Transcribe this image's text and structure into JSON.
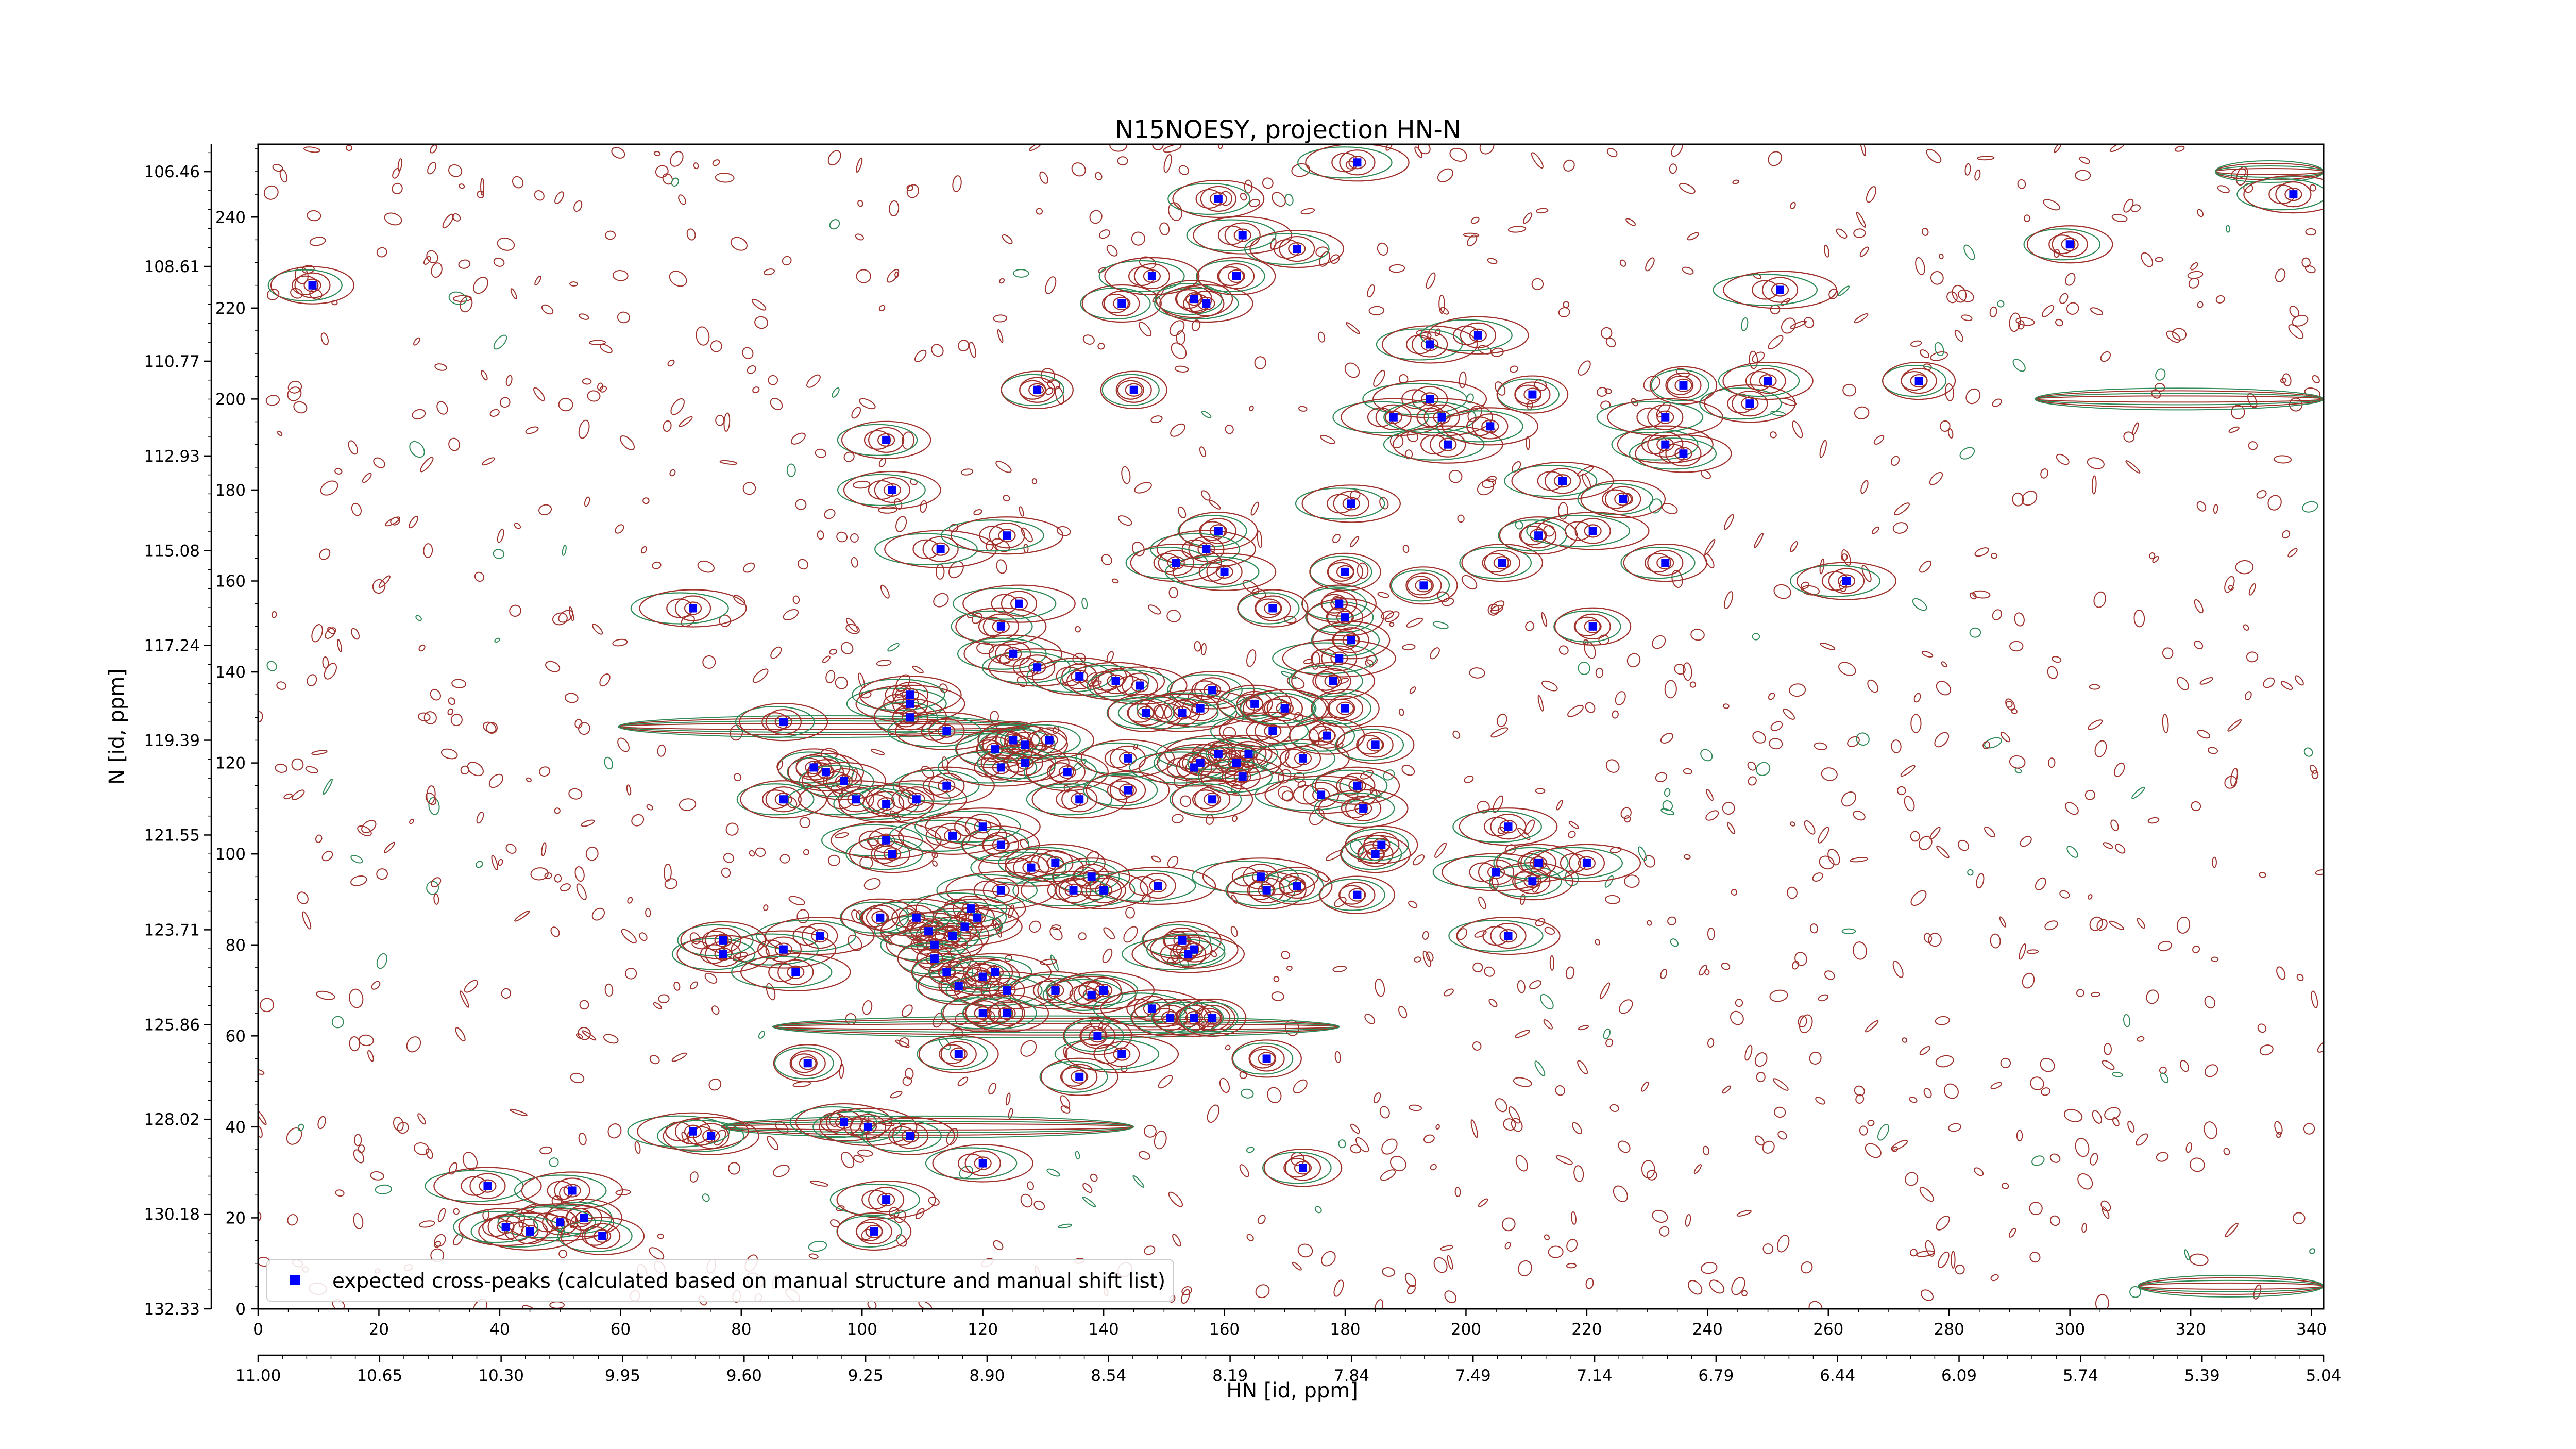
{
  "chart_data": {
    "type": "scatter",
    "title": "N15NOESY, projection HN-N",
    "xlabel": "HN [id, ppm]",
    "ylabel": "N [id, ppm]",
    "x_index_range": [
      0,
      342
    ],
    "y_index_range": [
      0,
      256
    ],
    "x_index_ticks": [
      "0",
      "20",
      "40",
      "60",
      "80",
      "100",
      "120",
      "140",
      "160",
      "180",
      "200",
      "220",
      "240",
      "260",
      "280",
      "300",
      "320",
      "340"
    ],
    "y_index_ticks": [
      "0",
      "20",
      "40",
      "60",
      "80",
      "100",
      "120",
      "140",
      "160",
      "180",
      "200",
      "220",
      "240"
    ],
    "hn_ppm_ticks": [
      "11.00",
      "10.65",
      "10.30",
      "9.95",
      "9.60",
      "9.25",
      "8.90",
      "8.54",
      "8.19",
      "7.84",
      "7.49",
      "7.14",
      "6.79",
      "6.44",
      "6.09",
      "5.74",
      "5.39",
      "5.04"
    ],
    "n_ppm_ticks": [
      "132.33",
      "130.18",
      "128.02",
      "125.86",
      "123.71",
      "121.55",
      "119.39",
      "117.24",
      "115.08",
      "112.93",
      "110.77",
      "108.61",
      "106.46"
    ],
    "contour_colors": {
      "positive": "#a0302a",
      "negative": "#2e8b57"
    },
    "marker_color": "#0000ff",
    "legend": {
      "label": "expected cross-peaks (calculated based on manual structure and manual shift list)",
      "position": "lower left"
    },
    "series": [
      {
        "name": "expected cross-peaks (calculated based on manual structure and manual shift list)",
        "points": [
          [
            9,
            225
          ],
          [
            143,
            221
          ],
          [
            155,
            222
          ],
          [
            157,
            221
          ],
          [
            162,
            227
          ],
          [
            148,
            227
          ],
          [
            163,
            236
          ],
          [
            159,
            244
          ],
          [
            172,
            233
          ],
          [
            182,
            252
          ],
          [
            337,
            245
          ],
          [
            300,
            234
          ],
          [
            252,
            224
          ],
          [
            194,
            212
          ],
          [
            202,
            214
          ],
          [
            194,
            200
          ],
          [
            188,
            196
          ],
          [
            197,
            190
          ],
          [
            196,
            196
          ],
          [
            204,
            194
          ],
          [
            211,
            201
          ],
          [
            216,
            182
          ],
          [
            226,
            178
          ],
          [
            236,
            203
          ],
          [
            233,
            190
          ],
          [
            233,
            196
          ],
          [
            236,
            188
          ],
          [
            247,
            199
          ],
          [
            250,
            204
          ],
          [
            275,
            204
          ],
          [
            104,
            191
          ],
          [
            105,
            180
          ],
          [
            129,
            202
          ],
          [
            145,
            202
          ],
          [
            113,
            167
          ],
          [
            124,
            170
          ],
          [
            159,
            171
          ],
          [
            157,
            167
          ],
          [
            152,
            164
          ],
          [
            160,
            162
          ],
          [
            168,
            154
          ],
          [
            180,
            162
          ],
          [
            181,
            177
          ],
          [
            193,
            159
          ],
          [
            206,
            164
          ],
          [
            212,
            170
          ],
          [
            221,
            171
          ],
          [
            233,
            164
          ],
          [
            263,
            160
          ],
          [
            221,
            150
          ],
          [
            72,
            154
          ],
          [
            123,
            150
          ],
          [
            126,
            155
          ],
          [
            125,
            144
          ],
          [
            129,
            141
          ],
          [
            136,
            139
          ],
          [
            142,
            138
          ],
          [
            146,
            137
          ],
          [
            158,
            136
          ],
          [
            156,
            132
          ],
          [
            153,
            131
          ],
          [
            165,
            133
          ],
          [
            170,
            132
          ],
          [
            180,
            132
          ],
          [
            179,
            143
          ],
          [
            178,
            138
          ],
          [
            180,
            152
          ],
          [
            181,
            147
          ],
          [
            179,
            155
          ],
          [
            87,
            129
          ],
          [
            108,
            133
          ],
          [
            108,
            135
          ],
          [
            108,
            130
          ],
          [
            114,
            127
          ],
          [
            125,
            125
          ],
          [
            127,
            124
          ],
          [
            131,
            125
          ],
          [
            122,
            123
          ],
          [
            147,
            131
          ],
          [
            144,
            121
          ],
          [
            156,
            120
          ],
          [
            159,
            122
          ],
          [
            164,
            122
          ],
          [
            173,
            121
          ],
          [
            177,
            126
          ],
          [
            168,
            127
          ],
          [
            170,
            132
          ],
          [
            185,
            124
          ],
          [
            92,
            119
          ],
          [
            94,
            118
          ],
          [
            97,
            116
          ],
          [
            87,
            112
          ],
          [
            99,
            112
          ],
          [
            104,
            111
          ],
          [
            109,
            112
          ],
          [
            114,
            115
          ],
          [
            123,
            119
          ],
          [
            127,
            120
          ],
          [
            134,
            118
          ],
          [
            136,
            112
          ],
          [
            144,
            114
          ],
          [
            155,
            119
          ],
          [
            162,
            120
          ],
          [
            163,
            117
          ],
          [
            158,
            112
          ],
          [
            176,
            113
          ],
          [
            182,
            115
          ],
          [
            183,
            110
          ],
          [
            104,
            103
          ],
          [
            105,
            100
          ],
          [
            115,
            104
          ],
          [
            120,
            106
          ],
          [
            123,
            102
          ],
          [
            128,
            97
          ],
          [
            132,
            98
          ],
          [
            138,
            95
          ],
          [
            140,
            92
          ],
          [
            149,
            93
          ],
          [
            135,
            92
          ],
          [
            123,
            92
          ],
          [
            118,
            88
          ],
          [
            119,
            86
          ],
          [
            117,
            84
          ],
          [
            115,
            82
          ],
          [
            112,
            80
          ],
          [
            111,
            83
          ],
          [
            109,
            86
          ],
          [
            103,
            86
          ],
          [
            93,
            82
          ],
          [
            87,
            79
          ],
          [
            77,
            78
          ],
          [
            77,
            81
          ],
          [
            112,
            77
          ],
          [
            114,
            74
          ],
          [
            116,
            71
          ],
          [
            120,
            73
          ],
          [
            122,
            74
          ],
          [
            124,
            70
          ],
          [
            132,
            70
          ],
          [
            138,
            69
          ],
          [
            140,
            70
          ],
          [
            153,
            81
          ],
          [
            154,
            78
          ],
          [
            155,
            79
          ],
          [
            166,
            95
          ],
          [
            167,
            92
          ],
          [
            172,
            93
          ],
          [
            182,
            91
          ],
          [
            185,
            100
          ],
          [
            186,
            102
          ],
          [
            207,
            106
          ],
          [
            205,
            96
          ],
          [
            211,
            94
          ],
          [
            212,
            98
          ],
          [
            220,
            98
          ],
          [
            207,
            82
          ],
          [
            89,
            74
          ],
          [
            120,
            65
          ],
          [
            124,
            65
          ],
          [
            139,
            60
          ],
          [
            148,
            66
          ],
          [
            151,
            64
          ],
          [
            155,
            64
          ],
          [
            158,
            64
          ],
          [
            116,
            56
          ],
          [
            143,
            56
          ],
          [
            136,
            51
          ],
          [
            167,
            55
          ],
          [
            91,
            54
          ],
          [
            72,
            39
          ],
          [
            75,
            38
          ],
          [
            97,
            41
          ],
          [
            101,
            40
          ],
          [
            108,
            38
          ],
          [
            120,
            32
          ],
          [
            173,
            31
          ],
          [
            38,
            27
          ],
          [
            52,
            26
          ],
          [
            54,
            20
          ],
          [
            50,
            19
          ],
          [
            45,
            17
          ],
          [
            41,
            18
          ],
          [
            57,
            16
          ],
          [
            104,
            24
          ],
          [
            102,
            17
          ]
        ]
      }
    ]
  }
}
